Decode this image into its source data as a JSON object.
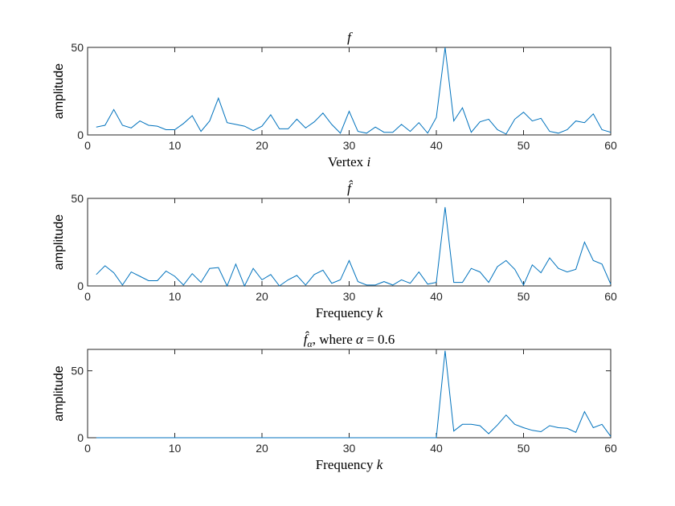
{
  "chart_data": [
    {
      "type": "line",
      "title": "f",
      "title_italic": true,
      "xlabel": "Vertex",
      "xlabel_var": "i",
      "ylabel": "amplitude",
      "xlim": [
        0,
        60
      ],
      "ylim": [
        0,
        50
      ],
      "xticks": [
        0,
        10,
        20,
        30,
        40,
        50,
        60
      ],
      "yticks": [
        0,
        50
      ],
      "grid": false,
      "color": "#0072BD",
      "x": [
        1,
        2,
        3,
        4,
        5,
        6,
        7,
        8,
        9,
        10,
        11,
        12,
        13,
        14,
        15,
        16,
        17,
        18,
        19,
        20,
        21,
        22,
        23,
        24,
        25,
        26,
        27,
        28,
        29,
        30,
        31,
        32,
        33,
        34,
        35,
        36,
        37,
        38,
        39,
        40,
        41,
        42,
        43,
        44,
        45,
        46,
        47,
        48,
        49,
        50,
        51,
        52,
        53,
        54,
        55,
        56,
        57,
        58,
        59,
        60
      ],
      "values": [
        4.5,
        5.5,
        14.5,
        5.5,
        4,
        8,
        5.5,
        5,
        3,
        3,
        6.5,
        11,
        2,
        8,
        21,
        7,
        6,
        5,
        2.5,
        5,
        11.5,
        3.5,
        3.5,
        9,
        4,
        7.5,
        12.5,
        6,
        1,
        13.5,
        2,
        1,
        4.5,
        1.5,
        1.5,
        6,
        2,
        7,
        1,
        10,
        50,
        8,
        15.5,
        1.5,
        7.5,
        9,
        3,
        0.5,
        9,
        13,
        8,
        9.5,
        2,
        1,
        3,
        8,
        7,
        12,
        3,
        1.5
      ]
    },
    {
      "type": "line",
      "title": "f̂",
      "title_italic": true,
      "xlabel": "Frequency",
      "xlabel_var": "k",
      "ylabel": "amplitude",
      "xlim": [
        0,
        60
      ],
      "ylim": [
        0,
        50
      ],
      "xticks": [
        0,
        10,
        20,
        30,
        40,
        50,
        60
      ],
      "yticks": [
        0,
        50
      ],
      "grid": false,
      "color": "#0072BD",
      "x": [
        1,
        2,
        3,
        4,
        5,
        6,
        7,
        8,
        9,
        10,
        11,
        12,
        13,
        14,
        15,
        16,
        17,
        18,
        19,
        20,
        21,
        22,
        23,
        24,
        25,
        26,
        27,
        28,
        29,
        30,
        31,
        32,
        33,
        34,
        35,
        36,
        37,
        38,
        39,
        40,
        41,
        42,
        43,
        44,
        45,
        46,
        47,
        48,
        49,
        50,
        51,
        52,
        53,
        54,
        55,
        56,
        57,
        58,
        59,
        60
      ],
      "values": [
        6.5,
        11.5,
        7.5,
        0.5,
        8,
        5.5,
        3,
        3,
        8.5,
        5.5,
        0.5,
        7,
        2,
        10,
        10.5,
        0,
        12.5,
        0,
        10,
        3.5,
        6.5,
        0,
        3.5,
        6,
        0.5,
        6.5,
        9,
        1.5,
        3.5,
        14.5,
        2.5,
        0.5,
        0.5,
        2.5,
        0.5,
        3.5,
        1.5,
        8,
        1,
        2,
        45,
        2,
        2,
        10,
        8,
        2,
        11,
        14.5,
        9.5,
        0.5,
        12,
        7.5,
        16,
        10,
        8,
        9.5,
        25,
        14.5,
        12.5,
        1
      ]
    },
    {
      "type": "line",
      "title": "f̂α, where α = 0.6",
      "title_main": "f̂",
      "title_sub": "α",
      "title_rest": ", where ",
      "title_alpha": "α",
      "title_eq": " = 0.6",
      "xlabel": "Frequency",
      "xlabel_var": "k",
      "ylabel": "amplitude",
      "xlim": [
        0,
        60
      ],
      "ylim": [
        0,
        66
      ],
      "xticks": [
        0,
        10,
        20,
        30,
        40,
        50,
        60
      ],
      "yticks": [
        0,
        50
      ],
      "grid": false,
      "color": "#0072BD",
      "x": [
        1,
        2,
        3,
        4,
        5,
        6,
        7,
        8,
        9,
        10,
        11,
        12,
        13,
        14,
        15,
        16,
        17,
        18,
        19,
        20,
        21,
        22,
        23,
        24,
        25,
        26,
        27,
        28,
        29,
        30,
        31,
        32,
        33,
        34,
        35,
        36,
        37,
        38,
        39,
        40,
        41,
        42,
        43,
        44,
        45,
        46,
        47,
        48,
        49,
        50,
        51,
        52,
        53,
        54,
        55,
        56,
        57,
        58,
        59,
        60
      ],
      "values": [
        0,
        0,
        0,
        0,
        0,
        0,
        0,
        0,
        0,
        0,
        0,
        0,
        0,
        0,
        0,
        0,
        0,
        0,
        0,
        0,
        0,
        0,
        0,
        0,
        0,
        0,
        0,
        0,
        0,
        0,
        0,
        0,
        0,
        0,
        0,
        0,
        0,
        0,
        0,
        0,
        65,
        5,
        10,
        10,
        9,
        3,
        9.5,
        17,
        10,
        7.5,
        5.5,
        4.5,
        9,
        7.5,
        7,
        4,
        19.5,
        7.5,
        10,
        1
      ]
    }
  ]
}
